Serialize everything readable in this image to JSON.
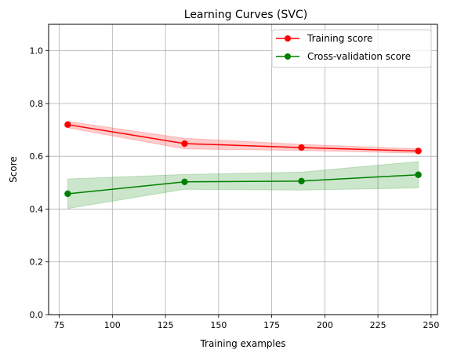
{
  "chart_data": {
    "type": "line",
    "title": "Learning Curves (SVC)",
    "xlabel": "Training examples",
    "ylabel": "Score",
    "xlim": [
      70,
      253
    ],
    "ylim": [
      0,
      1.1
    ],
    "x_ticks": [
      75,
      100,
      125,
      150,
      175,
      200,
      225,
      250
    ],
    "y_ticks": [
      0.0,
      0.2,
      0.4,
      0.6,
      0.8,
      1.0
    ],
    "x_tick_labels": [
      "75",
      "100",
      "125",
      "150",
      "175",
      "200",
      "225",
      "250"
    ],
    "y_tick_labels": [
      "0.0",
      "0.2",
      "0.4",
      "0.6",
      "0.8",
      "1.0"
    ],
    "grid": true,
    "legend_position": "top-right",
    "x": [
      79,
      134,
      189,
      244
    ],
    "series": [
      {
        "name": "Training score",
        "color": "#ff0000",
        "band_color": "#ff0000",
        "values": [
          0.72,
          0.648,
          0.633,
          0.62
        ],
        "lower": [
          0.708,
          0.628,
          0.622,
          0.612
        ],
        "upper": [
          0.732,
          0.668,
          0.645,
          0.628
        ]
      },
      {
        "name": "Cross-validation score",
        "color": "#008000",
        "band_color": "#008000",
        "values": [
          0.458,
          0.503,
          0.506,
          0.53
        ],
        "lower": [
          0.402,
          0.475,
          0.472,
          0.48
        ],
        "upper": [
          0.514,
          0.531,
          0.54,
          0.58
        ]
      }
    ]
  }
}
